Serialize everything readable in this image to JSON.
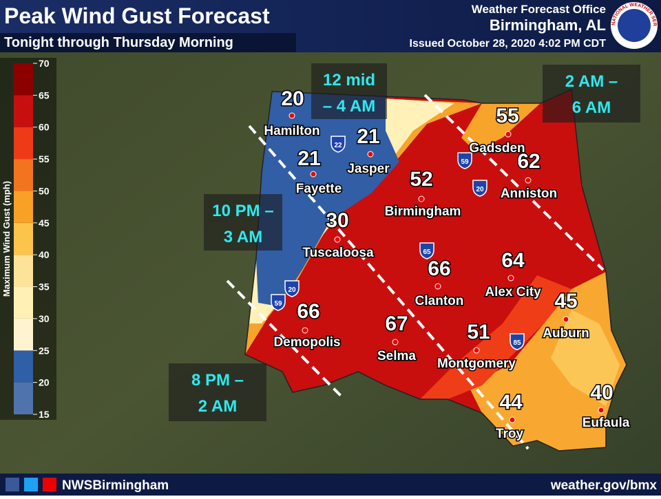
{
  "header": {
    "title": "Peak Wind Gust Forecast",
    "subtitle": "Tonight through Thursday Morning",
    "office": "Weather Forecast Office",
    "location": "Birmingham, AL",
    "issued": "Issued October 28, 2020 4:02 PM CDT",
    "logo_text": "NATIONAL WEATHER SERVICE"
  },
  "legend": {
    "title": "Maximum Wind Gust (mph)",
    "ticks": [
      15,
      20,
      25,
      30,
      35,
      40,
      45,
      50,
      55,
      60,
      65,
      70
    ],
    "band_colors": [
      "#4f74ad",
      "#2f5fa6",
      "#fff4cf",
      "#fff0b5",
      "#fde29a",
      "#fcc44a",
      "#f9a126",
      "#f3741f",
      "#ee3a16",
      "#c80f0f",
      "#8c0000"
    ]
  },
  "cities": [
    {
      "name": "Hamilton",
      "value": "20"
    },
    {
      "name": "Jasper",
      "value": "21"
    },
    {
      "name": "Fayette",
      "value": "21"
    },
    {
      "name": "Birmingham",
      "value": "52"
    },
    {
      "name": "Gadsden",
      "value": "55"
    },
    {
      "name": "Anniston",
      "value": "62"
    },
    {
      "name": "Tuscaloosa",
      "value": "30"
    },
    {
      "name": "Clanton",
      "value": "66"
    },
    {
      "name": "Alex City",
      "value": "64"
    },
    {
      "name": "Auburn",
      "value": "45"
    },
    {
      "name": "Demopolis",
      "value": "66"
    },
    {
      "name": "Selma",
      "value": "67"
    },
    {
      "name": "Montgomery",
      "value": "51"
    },
    {
      "name": "Troy",
      "value": "44"
    },
    {
      "name": "Eufaula",
      "value": "40"
    }
  ],
  "timing": [
    {
      "lines": [
        "12 mid",
        "– 4 AM"
      ]
    },
    {
      "lines": [
        "2 AM –",
        "6 AM"
      ]
    },
    {
      "lines": [
        "10 PM –",
        "3 AM"
      ]
    },
    {
      "lines": [
        "8 PM –",
        "2 AM"
      ]
    }
  ],
  "interstates": [
    "22",
    "59",
    "20",
    "65",
    "20",
    "59",
    "85"
  ],
  "footer": {
    "handle": "NWSBirmingham",
    "url": "weather.gov/bmx"
  }
}
